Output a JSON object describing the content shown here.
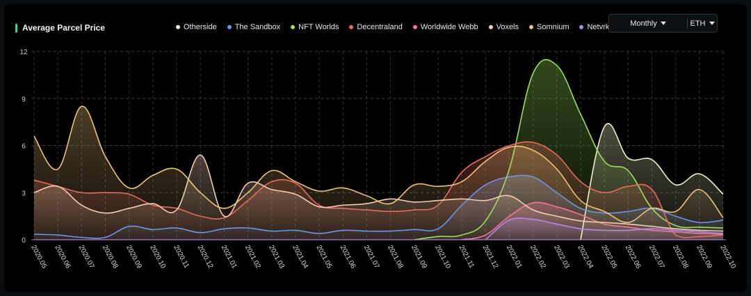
{
  "header": {
    "title": "Average Parcel Price"
  },
  "controls": {
    "period": "Monthly",
    "currency": "ETH"
  },
  "chart_data": {
    "type": "area",
    "title": "Average Parcel Price",
    "xlabel": "",
    "ylabel": "",
    "ylim": [
      0,
      12
    ],
    "yticks": [
      "0",
      "3",
      "6",
      "9",
      "12"
    ],
    "grid": true,
    "legend": "top",
    "categories": [
      "2020.05",
      "2020.06",
      "2020.07",
      "2020.08",
      "2020.09",
      "2020.10",
      "2020.11",
      "2020.12",
      "2021.01",
      "2021.02",
      "2021.03",
      "2021.04",
      "2021.05",
      "2021.06",
      "2021.07",
      "2021.08",
      "2021.09",
      "2021.10",
      "2021.11",
      "2021.12",
      "2022.01",
      "2022.02",
      "2022.03",
      "2022.04",
      "2022.05",
      "2022.06",
      "2022.07",
      "2022.08",
      "2022.09",
      "2022.10"
    ],
    "series": [
      {
        "name": "Otherside",
        "color": "#f4f1c4",
        "values": [
          null,
          null,
          null,
          null,
          null,
          null,
          null,
          null,
          null,
          null,
          null,
          null,
          null,
          null,
          null,
          null,
          null,
          null,
          null,
          null,
          null,
          null,
          null,
          0,
          7.2,
          5.2,
          5.1,
          3.5,
          4.2,
          2.9
        ]
      },
      {
        "name": "The Sandbox",
        "color": "#6d96e8",
        "values": [
          0.35,
          0.3,
          0.15,
          0.15,
          0.85,
          0.65,
          0.75,
          0.45,
          0.7,
          0.75,
          0.55,
          0.6,
          0.4,
          0.6,
          0.55,
          0.55,
          0.65,
          0.7,
          2.2,
          3.5,
          4.0,
          4.0,
          3.0,
          2.0,
          1.7,
          1.8,
          2.0,
          1.5,
          1.1,
          1.25
        ]
      },
      {
        "name": "NFT Worlds",
        "color": "#9be05a",
        "values": [
          null,
          null,
          null,
          null,
          null,
          null,
          null,
          null,
          null,
          null,
          null,
          null,
          null,
          null,
          null,
          null,
          0,
          0.2,
          0.3,
          1.2,
          4.5,
          10.6,
          11.1,
          8.0,
          5.0,
          4.4,
          2.0,
          0.9,
          0.8,
          0.75
        ]
      },
      {
        "name": "Decentraland",
        "color": "#e96b5c",
        "values": [
          3.8,
          3.4,
          3.0,
          3.0,
          2.9,
          2.2,
          2.0,
          1.5,
          1.4,
          2.5,
          3.7,
          3.6,
          2.2,
          2.0,
          1.9,
          1.8,
          1.9,
          2.2,
          4.3,
          5.3,
          6.0,
          6.2,
          5.4,
          3.7,
          3.0,
          3.4,
          3.2,
          0.3,
          0.2,
          0.3
        ]
      },
      {
        "name": "Worldwide Webb",
        "color": "#f0779a",
        "values": [
          null,
          null,
          null,
          null,
          null,
          null,
          null,
          null,
          null,
          null,
          null,
          null,
          null,
          null,
          null,
          null,
          null,
          null,
          0,
          0.3,
          1.5,
          2.35,
          2.1,
          1.6,
          1.0,
          0.8,
          0.6,
          0.5,
          0.4,
          0.35
        ]
      },
      {
        "name": "Voxels",
        "color": "#f4cdb4",
        "values": [
          3.0,
          3.4,
          2.2,
          1.7,
          2.0,
          2.3,
          1.9,
          5.4,
          1.5,
          3.6,
          3.2,
          2.9,
          2.1,
          2.2,
          2.3,
          2.6,
          2.4,
          2.5,
          2.6,
          2.5,
          2.8,
          1.9,
          1.5,
          1.2,
          1.1,
          1.0,
          0.85,
          0.7,
          0.6,
          0.55
        ]
      },
      {
        "name": "Somnium",
        "color": "#f0c27a",
        "values": [
          6.6,
          4.5,
          8.5,
          5.3,
          3.3,
          4.1,
          4.5,
          3.0,
          2.0,
          3.0,
          4.4,
          3.7,
          3.1,
          3.3,
          2.8,
          2.3,
          3.5,
          3.4,
          3.7,
          5.0,
          5.9,
          5.7,
          4.5,
          2.5,
          1.8,
          1.1,
          2.0,
          1.8,
          3.2,
          1.4
        ]
      },
      {
        "name": "Netvrk",
        "color": "#b48ae6",
        "values": [
          null,
          null,
          null,
          null,
          null,
          null,
          null,
          null,
          null,
          null,
          null,
          null,
          null,
          null,
          null,
          null,
          null,
          null,
          null,
          0,
          1.25,
          1.3,
          1.0,
          0.7,
          0.6,
          0.6,
          0.7,
          0.6,
          0.5,
          0.4
        ]
      }
    ]
  }
}
